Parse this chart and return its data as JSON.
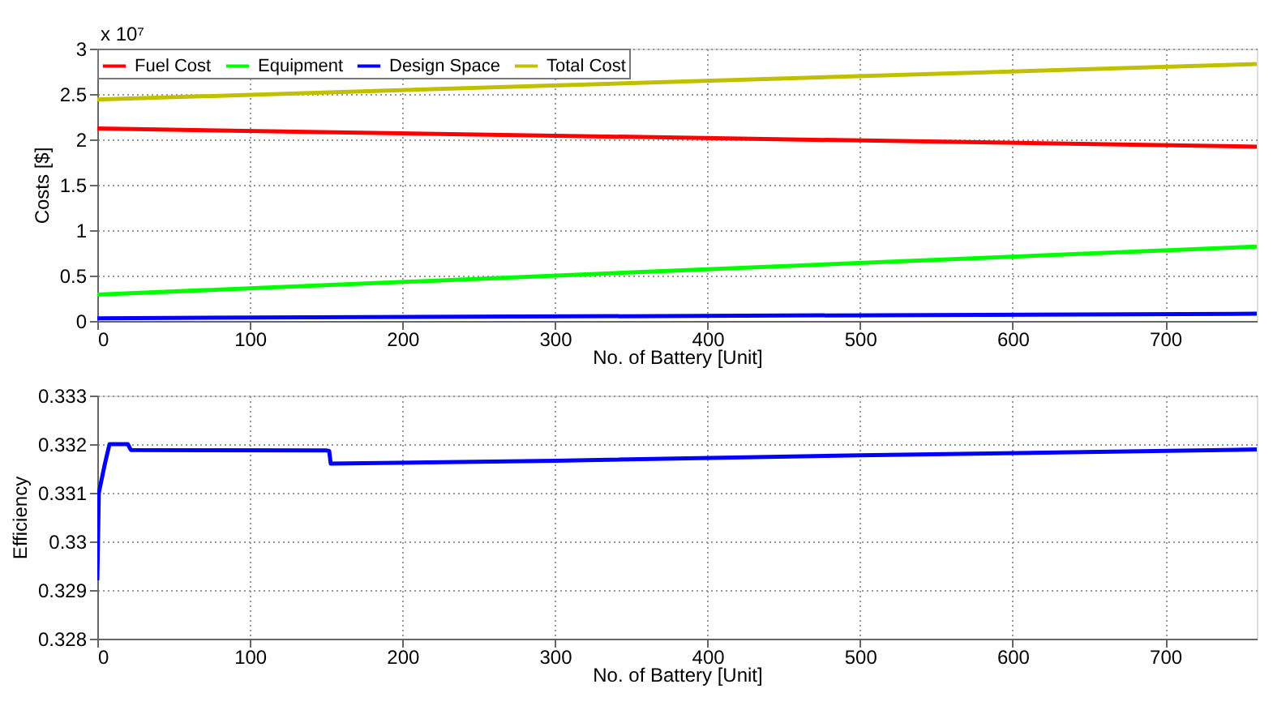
{
  "chart_data": [
    {
      "type": "line",
      "xlabel": "No. of Battery [Unit]",
      "ylabel": "Costs [$]",
      "annotations": [
        "x 10⁷"
      ],
      "xlim": [
        0,
        760
      ],
      "xticks": [
        0,
        100,
        200,
        300,
        400,
        500,
        600,
        700
      ],
      "ylim": [
        0,
        3
      ],
      "yticks": [
        0,
        0.5,
        1,
        1.5,
        2,
        2.5,
        3
      ],
      "grid": true,
      "legend": "top left",
      "line_style": "solid",
      "series": [
        {
          "name": "Fuel Cost",
          "color": "#ff0000",
          "x": [
            0,
            760
          ],
          "values": [
            2.12,
            1.92
          ]
        },
        {
          "name": "Equipment",
          "color": "#00ff00",
          "x": [
            0,
            760
          ],
          "values": [
            0.29,
            0.82
          ]
        },
        {
          "name": "Design Space",
          "color": "#0000ff",
          "x": [
            0,
            760
          ],
          "values": [
            0.03,
            0.08
          ]
        },
        {
          "name": "Total Cost",
          "color": "#c0c000",
          "x": [
            0,
            760
          ],
          "values": [
            2.44,
            2.83
          ]
        }
      ]
    },
    {
      "type": "line",
      "xlabel": "No. of Battery [Unit]",
      "ylabel": "Efficiency",
      "xlim": [
        0,
        760
      ],
      "xticks": [
        0,
        100,
        200,
        300,
        400,
        500,
        600,
        700
      ],
      "ylim": [
        0.328,
        0.333
      ],
      "yticks": [
        0.328,
        0.329,
        0.33,
        0.331,
        0.332,
        0.333
      ],
      "grid": true,
      "line_style": "solid",
      "series": [
        {
          "color": "#0000ff",
          "x": [
            0,
            1,
            5,
            8,
            20,
            22,
            150,
            152,
            153,
            300,
            500,
            760
          ],
          "values": [
            0.3292,
            0.331,
            0.3316,
            0.332,
            0.332,
            0.33188,
            0.33187,
            0.33186,
            0.3316,
            0.33166,
            0.33177,
            0.33189
          ]
        }
      ]
    }
  ]
}
